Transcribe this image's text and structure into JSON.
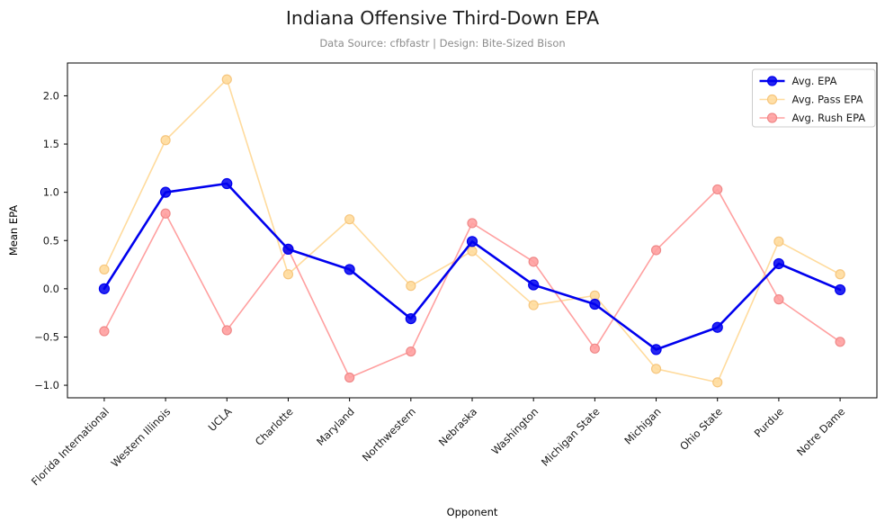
{
  "title": "Indiana Offensive Third-Down EPA",
  "subtitle": "Data Source: cfbfastr | Design: Bite-Sized Bison",
  "chart_data": {
    "type": "line",
    "title": "Indiana Offensive Third-Down EPA",
    "subtitle": "Data Source: cfbfastr | Design: Bite-Sized Bison",
    "xlabel": "Opponent",
    "ylabel": "Mean EPA",
    "categories": [
      "Florida International",
      "Western Illinois",
      "UCLA",
      "Charlotte",
      "Maryland",
      "Northwestern",
      "Nebraska",
      "Washington",
      "Michigan State",
      "Michigan",
      "Ohio State",
      "Purdue",
      "Notre Dame"
    ],
    "series": [
      {
        "name": "Avg. EPA",
        "color": "#0000ee",
        "marker_edge": "#0000ee",
        "line_width": 2.6,
        "marker_radius": 5.5,
        "marker_opacity": 0.85,
        "zorder": 3,
        "values": [
          0.0,
          1.0,
          1.09,
          0.41,
          0.2,
          -0.31,
          0.49,
          0.04,
          -0.16,
          -0.63,
          -0.4,
          0.26,
          -0.01
        ]
      },
      {
        "name": "Avg. Pass EPA",
        "color": "#ffdb9d",
        "marker_edge": "#f6c67e",
        "line_width": 1.6,
        "marker_radius": 5,
        "marker_opacity": 0.9,
        "zorder": 1,
        "values": [
          0.2,
          1.54,
          2.17,
          0.15,
          0.72,
          0.03,
          0.39,
          -0.17,
          -0.07,
          -0.83,
          -0.97,
          0.49,
          0.15
        ]
      },
      {
        "name": "Avg. Rush EPA",
        "color": "#ffa0a0",
        "marker_edge": "#ef8989",
        "line_width": 1.6,
        "marker_radius": 5,
        "marker_opacity": 0.9,
        "zorder": 2,
        "values": [
          -0.44,
          0.78,
          -0.43,
          0.41,
          -0.92,
          -0.65,
          0.68,
          0.28,
          -0.62,
          0.4,
          1.03,
          -0.11,
          -0.55
        ]
      }
    ],
    "yticks": [
      2.0,
      1.5,
      1.0,
      0.5,
      0.0,
      -0.5,
      -1.0
    ],
    "ylim": [
      -1.13,
      2.34
    ],
    "legend_position": "upper right",
    "grid": false,
    "axis_color": "#000000",
    "tick_label_color": "#1a1a1a",
    "legend_border_color": "#cccccc"
  }
}
